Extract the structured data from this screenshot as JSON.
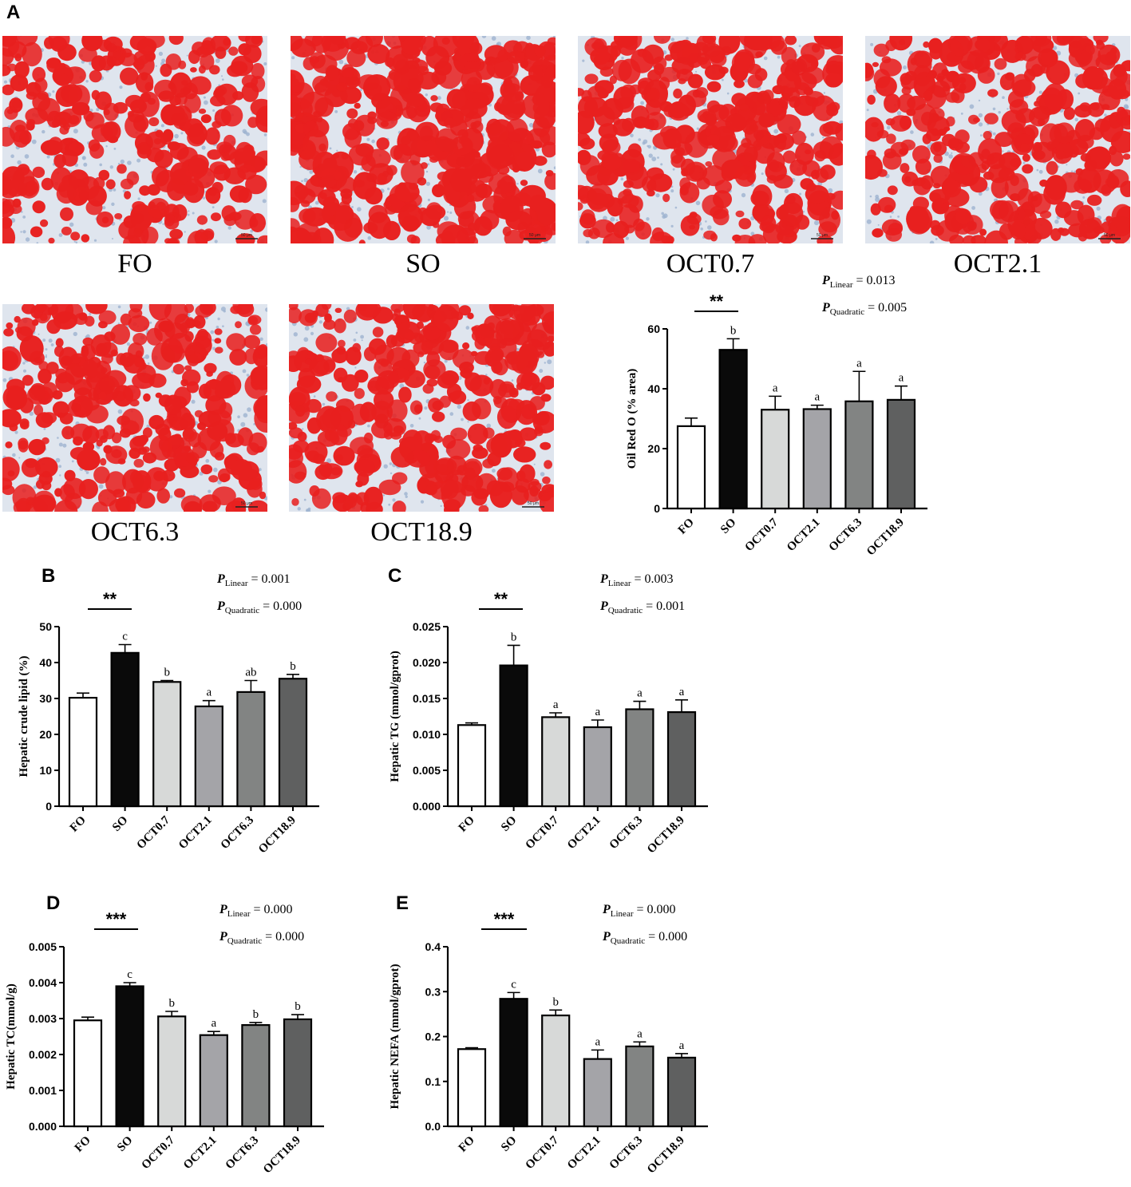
{
  "panel_letters": [
    "A",
    "B",
    "C",
    "D",
    "E"
  ],
  "micrographs": [
    {
      "label": "FO",
      "scale_bar": "50 μm"
    },
    {
      "label": "SO",
      "scale_bar": "50 μm"
    },
    {
      "label": "OCT0.7",
      "scale_bar": "50 μm"
    },
    {
      "label": "OCT2.1",
      "scale_bar": "50 μm"
    },
    {
      "label": "OCT6.3",
      "scale_bar": "50 μm"
    },
    {
      "label": "OCT18.9",
      "scale_bar": "50 μm"
    }
  ],
  "colors": {
    "FO": "#ffffff",
    "SO": "#0a0a0a",
    "OCT0.7": "#d7d9d8",
    "OCT2.1": "#a4a4a8",
    "OCT6.3": "#828483",
    "OCT18.9": "#5f6060",
    "stain_red": "#e8201f",
    "stain_blue": "#9db3d0"
  },
  "chart_data": [
    {
      "panel": "A",
      "type": "bar",
      "categories": [
        "FO",
        "SO",
        "OCT0.7",
        "OCT2.1",
        "OCT6.3",
        "OCT18.9"
      ],
      "values": [
        27.5,
        53.0,
        33.0,
        33.2,
        35.8,
        36.3
      ],
      "errors": [
        2.7,
        3.7,
        4.5,
        1.3,
        10.0,
        4.6
      ],
      "letters": [
        "",
        "b",
        "a",
        "a",
        "a",
        "a"
      ],
      "ylabel": "Oil Red O (% area)",
      "ylim": [
        0,
        60
      ],
      "yticks": [
        "0",
        "20",
        "40",
        "60"
      ],
      "significance": "**",
      "p_linear": {
        "label": "P",
        "sub": "Linear",
        "value": "= 0.013"
      },
      "p_quadratic": {
        "label": "P",
        "sub": "Quadratic",
        "value": "= 0.005"
      }
    },
    {
      "panel": "B",
      "type": "bar",
      "categories": [
        "FO",
        "SO",
        "OCT0.7",
        "OCT2.1",
        "OCT6.3",
        "OCT18.9"
      ],
      "values": [
        30.2,
        42.7,
        34.6,
        27.8,
        31.8,
        35.5
      ],
      "errors": [
        1.3,
        2.3,
        0.4,
        1.6,
        3.2,
        1.2
      ],
      "letters": [
        "",
        "c",
        "b",
        "a",
        "ab",
        "b"
      ],
      "ylabel": "Hepatic crude lipid (%)",
      "ylim": [
        0,
        50
      ],
      "yticks": [
        "0",
        "10",
        "20",
        "30",
        "40",
        "50"
      ],
      "significance": "**",
      "p_linear": {
        "label": "P",
        "sub": "Linear",
        "value": "= 0.001"
      },
      "p_quadratic": {
        "label": "P",
        "sub": "Quadratic",
        "value": "= 0.000"
      }
    },
    {
      "panel": "C",
      "type": "bar",
      "categories": [
        "FO",
        "SO",
        "OCT0.7",
        "OCT2.1",
        "OCT6.3",
        "OCT18.9"
      ],
      "values": [
        0.0113,
        0.0196,
        0.0124,
        0.011,
        0.0135,
        0.0131
      ],
      "errors": [
        0.0003,
        0.0028,
        0.0006,
        0.001,
        0.0011,
        0.0017
      ],
      "letters": [
        "",
        "b",
        "a",
        "a",
        "a",
        "a"
      ],
      "ylabel": "Hepatic TG (mmol/gprot)",
      "ylim": [
        0,
        0.025
      ],
      "yticks": [
        "0.000",
        "0.005",
        "0.010",
        "0.015",
        "0.020",
        "0.025"
      ],
      "significance": "**",
      "p_linear": {
        "label": "P",
        "sub": "Linear",
        "value": "= 0.003"
      },
      "p_quadratic": {
        "label": "P",
        "sub": "Quadratic",
        "value": "= 0.001"
      }
    },
    {
      "panel": "D",
      "type": "bar",
      "categories": [
        "FO",
        "SO",
        "OCT0.7",
        "OCT2.1",
        "OCT6.3",
        "OCT18.9"
      ],
      "values": [
        0.00295,
        0.0039,
        0.00306,
        0.00254,
        0.00282,
        0.00298
      ],
      "errors": [
        9e-05,
        0.0001,
        0.00014,
        0.0001,
        7e-05,
        0.00013
      ],
      "letters": [
        "",
        "c",
        "b",
        "a",
        "b",
        "b"
      ],
      "ylabel": "Hepatic TC(mmol/g)",
      "ylim": [
        0,
        0.005
      ],
      "yticks": [
        "0.000",
        "0.001",
        "0.002",
        "0.003",
        "0.004",
        "0.005"
      ],
      "significance": "***",
      "p_linear": {
        "label": "P",
        "sub": "Linear",
        "value": "= 0.000"
      },
      "p_quadratic": {
        "label": "P",
        "sub": "Quadratic",
        "value": "= 0.000"
      }
    },
    {
      "panel": "E",
      "type": "bar",
      "categories": [
        "FO",
        "SO",
        "OCT0.7",
        "OCT2.1",
        "OCT6.3",
        "OCT18.9"
      ],
      "values": [
        0.172,
        0.284,
        0.247,
        0.15,
        0.178,
        0.153
      ],
      "errors": [
        0.003,
        0.014,
        0.012,
        0.02,
        0.01,
        0.009
      ],
      "letters": [
        "",
        "c",
        "b",
        "a",
        "a",
        "a"
      ],
      "ylabel": "Hepatic NEFA (mmol/gprot)",
      "ylim": [
        0,
        0.4
      ],
      "yticks": [
        "0.0",
        "0.1",
        "0.2",
        "0.3",
        "0.4"
      ],
      "significance": "***",
      "p_linear": {
        "label": "P",
        "sub": "Linear",
        "value": "= 0.000"
      },
      "p_quadratic": {
        "label": "P",
        "sub": "Quadratic",
        "value": "= 0.000"
      }
    }
  ]
}
